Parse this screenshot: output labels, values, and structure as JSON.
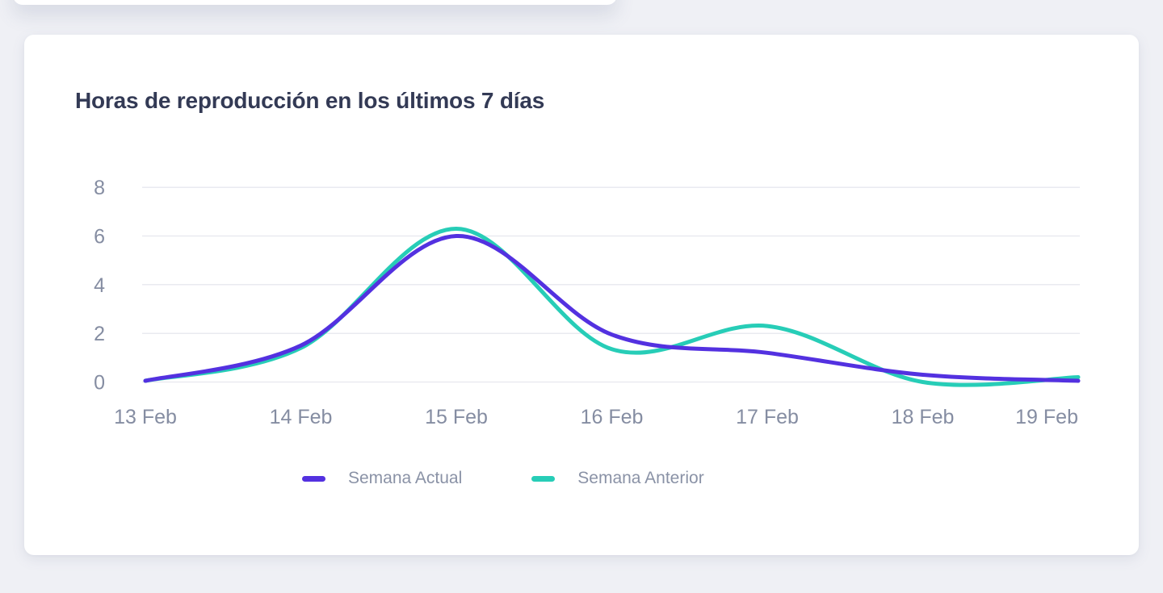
{
  "card": {
    "title": "Horas de reproducción en los últimos 7 días"
  },
  "colors": {
    "background": "#eff0f5",
    "card_background": "#ffffff",
    "title_text": "#333a55",
    "axis_text": "#858da2",
    "legend_text": "#8a92a6",
    "gridline": "#e9eaf0",
    "series_current": "#5331e0",
    "series_previous": "#27cdb7"
  },
  "chart_data": {
    "type": "line",
    "curve": "smooth",
    "title": "Horas de reproducción en los últimos 7 días",
    "categories": [
      "13 Feb",
      "14 Feb",
      "15 Feb",
      "16 Feb",
      "17 Feb",
      "18 Feb",
      "19 Feb"
    ],
    "series": [
      {
        "name": "Semana Actual",
        "color": "#5331e0",
        "values": [
          0.05,
          1.5,
          6.0,
          1.95,
          1.2,
          0.3,
          0.05
        ]
      },
      {
        "name": "Semana Anterior",
        "color": "#27cdb7",
        "values": [
          0.05,
          1.4,
          6.3,
          1.35,
          2.3,
          0.0,
          0.2
        ]
      }
    ],
    "xlabel": "",
    "ylabel": "",
    "y_ticks": [
      0,
      2,
      4,
      6,
      8
    ],
    "ylim": [
      0,
      8
    ],
    "grid": "horizontal-only",
    "legend_position": "bottom"
  }
}
